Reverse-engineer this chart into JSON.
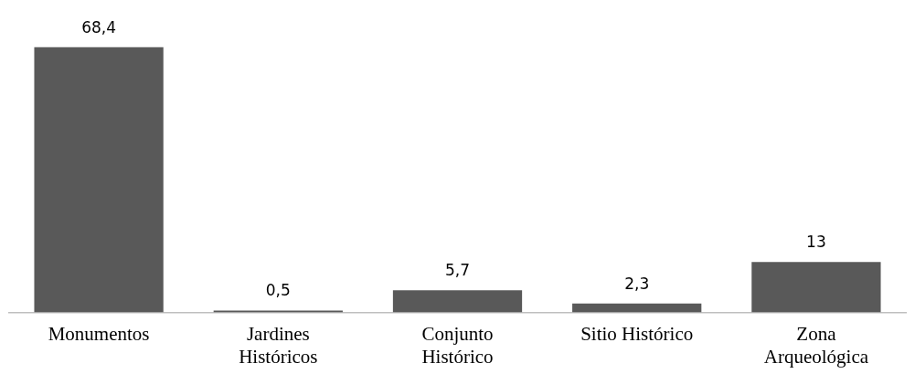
{
  "chart_data": {
    "type": "bar",
    "categories": [
      "Monumentos",
      "Jardines\nHistóricos",
      "Conjunto\nHistórico",
      "Sitio Histórico",
      "Zona\nArqueológica"
    ],
    "values": [
      68.4,
      0.5,
      5.7,
      2.3,
      13
    ],
    "value_labels": [
      "68,4",
      "0,5",
      "5,7",
      "2,3",
      "13"
    ],
    "color": "#595959",
    "grid": false,
    "legend": false
  }
}
